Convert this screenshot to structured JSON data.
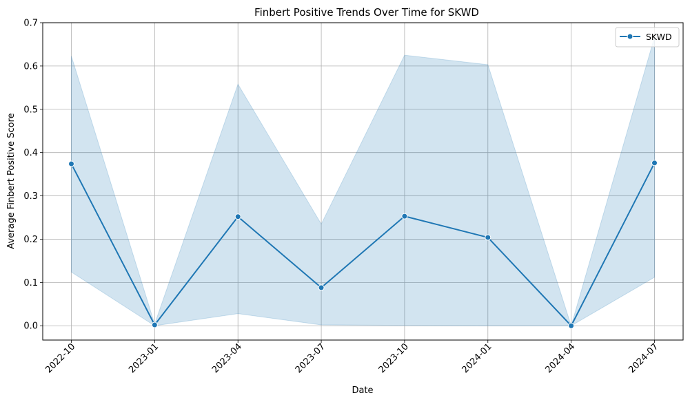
{
  "chart_data": {
    "type": "line",
    "title": "Finbert Positive Trends Over Time for SKWD",
    "xlabel": "Date",
    "ylabel": "Average Finbert Positive Score",
    "x": [
      "2022-10",
      "2023-01",
      "2023-04",
      "2023-07",
      "2023-10",
      "2024-01",
      "2024-04",
      "2024-07"
    ],
    "ylim": [
      -0.033,
      0.7
    ],
    "yticks": [
      0.0,
      0.1,
      0.2,
      0.3,
      0.4,
      0.5,
      0.6,
      0.7
    ],
    "ytick_labels": [
      "0.0",
      "0.1",
      "0.2",
      "0.3",
      "0.4",
      "0.5",
      "0.6",
      "0.7"
    ],
    "grid": true,
    "legend_position": "top-right",
    "series": [
      {
        "name": "SKWD",
        "color": "#1f77b4",
        "marker": "circle",
        "values": [
          0.374,
          0.002,
          0.252,
          0.088,
          0.253,
          0.204,
          0.0,
          0.376
        ],
        "ci_lower": [
          0.124,
          0.0,
          0.028,
          0.002,
          0.001,
          0.0,
          0.0,
          0.112
        ],
        "ci_upper": [
          0.623,
          0.004,
          0.558,
          0.235,
          0.625,
          0.603,
          0.0,
          0.667
        ],
        "ci_color": "#1f77b4"
      }
    ]
  }
}
